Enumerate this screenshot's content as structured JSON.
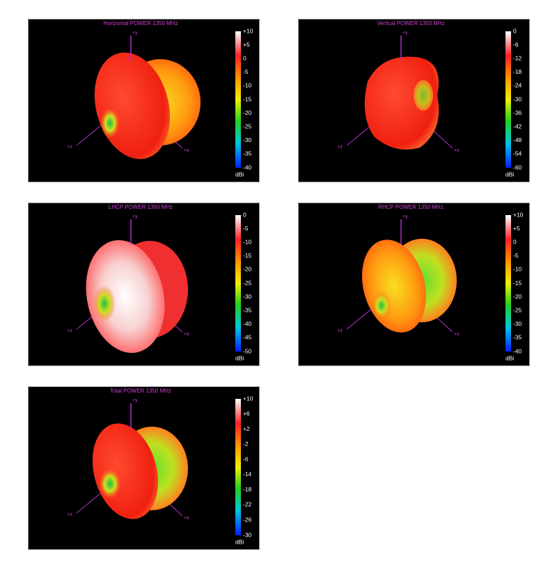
{
  "panels": [
    {
      "title": "Horizontal POWER 1350  MHz",
      "ticks": [
        "+10",
        "+5",
        "0",
        "-5",
        "-10",
        "-15",
        "-20",
        "-25",
        "-30",
        "-35",
        "-40"
      ],
      "unit": "dBi",
      "axes": [
        "+y",
        "+z",
        "+x"
      ]
    },
    {
      "title": "Vertical POWER 1350  MHz",
      "ticks": [
        "0",
        "-6",
        "-12",
        "-18",
        "-24",
        "-30",
        "-36",
        "-42",
        "-48",
        "-54",
        "-60"
      ],
      "unit": "dBi",
      "axes": [
        "+y",
        "+z",
        "+x"
      ]
    },
    {
      "title": "LHCP POWER 1350  MHz",
      "ticks": [
        "0",
        "-5",
        "-10",
        "-15",
        "-20",
        "-25",
        "-30",
        "-35",
        "-40",
        "-45",
        "-50"
      ],
      "unit": "dBi",
      "axes": [
        "+y",
        "+z",
        "+x"
      ]
    },
    {
      "title": "RHCP POWER 1350  MHz",
      "ticks": [
        "+10",
        "+5",
        "0",
        "-5",
        "-10",
        "-15",
        "-20",
        "-25",
        "-30",
        "-35",
        "-40"
      ],
      "unit": "dBi",
      "axes": [
        "+y",
        "+z",
        "+x"
      ]
    },
    {
      "title": "Total POWER 1350  MHz",
      "ticks": [
        "+10",
        "+6",
        "+2",
        "-2",
        "-6",
        "-14",
        "-18",
        "-22",
        "-26",
        "-30"
      ],
      "unit": "dBi",
      "axes": [
        "+y",
        "+z",
        "+x"
      ]
    }
  ]
}
